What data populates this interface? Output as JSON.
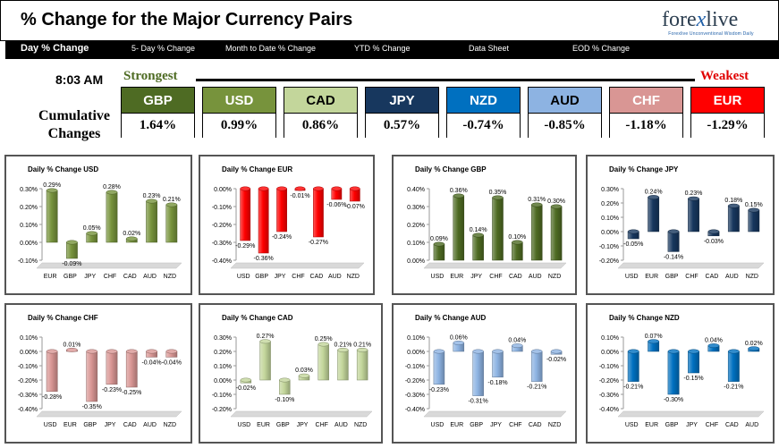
{
  "header": {
    "title": "% Change for the Major Currency Pairs",
    "logo": {
      "text_main": "fore",
      "text_x": "x",
      "text_end": "live",
      "tagline": "Forexlive Unconventional Wisdom Daily"
    }
  },
  "nav": {
    "items": [
      "Day % Change",
      "5- Day % Change",
      "Month to Date % Change",
      "YTD % Change",
      "Data Sheet",
      "EOD % Change"
    ]
  },
  "summary": {
    "time": "8:03 AM",
    "strongest": "Strongest",
    "weakest": "Weakest",
    "cumulative_label_1": "Cumulative",
    "cumulative_label_2": "Changes",
    "currencies": [
      {
        "name": "GBP",
        "value": "1.64%",
        "color": "#4e6b23",
        "text_color": "#ffffff"
      },
      {
        "name": "USD",
        "value": "0.99%",
        "color": "#77933c",
        "text_color": "#ffffff"
      },
      {
        "name": "CAD",
        "value": "0.86%",
        "color": "#c3d69b",
        "text_color": "#000000"
      },
      {
        "name": "JPY",
        "value": "0.57%",
        "color": "#17375e",
        "text_color": "#ffffff"
      },
      {
        "name": "NZD",
        "value": "-0.74%",
        "color": "#0070c0",
        "text_color": "#ffffff"
      },
      {
        "name": "AUD",
        "value": "-0.85%",
        "color": "#8db3e2",
        "text_color": "#000000"
      },
      {
        "name": "CHF",
        "value": "-1.18%",
        "color": "#d99694",
        "text_color": "#ffffff"
      },
      {
        "name": "EUR",
        "value": "-1.29%",
        "color": "#ff0000",
        "text_color": "#ffffff"
      }
    ]
  },
  "chart_data": [
    {
      "type": "bar",
      "title": "Daily % Change USD",
      "categories": [
        "EUR",
        "GBP",
        "JPY",
        "CHF",
        "CAD",
        "AUD",
        "NZD"
      ],
      "values": [
        0.29,
        -0.09,
        0.05,
        0.28,
        0.02,
        0.23,
        0.21
      ],
      "labels": [
        "0.29%",
        "-0.09%",
        "0.05%",
        "0.28%",
        "0.02%",
        "0.23%",
        "0.21%"
      ],
      "ylim": [
        -0.1,
        0.3
      ],
      "ticks": [
        "0.30%",
        "0.20%",
        "0.10%",
        "0.00%",
        "-0.10%"
      ],
      "color": "#77933c"
    },
    {
      "type": "bar",
      "title": "Daily % Change EUR",
      "categories": [
        "USD",
        "GBP",
        "JPY",
        "CHF",
        "CAD",
        "AUD",
        "NZD"
      ],
      "values": [
        -0.29,
        -0.36,
        -0.24,
        -0.01,
        -0.27,
        -0.06,
        -0.07
      ],
      "labels": [
        "-0.29%",
        "-0.36%",
        "-0.24%",
        "-0.01%",
        "-0.27%",
        "-0.06%",
        "-0.07%"
      ],
      "ylim": [
        -0.4,
        0.0
      ],
      "ticks": [
        "0.00%",
        "-0.10%",
        "-0.20%",
        "-0.30%",
        "-0.40%"
      ],
      "color": "#ff0000"
    },
    {
      "type": "bar",
      "title": "Daily % Change GBP",
      "categories": [
        "USD",
        "EUR",
        "JPY",
        "CHF",
        "CAD",
        "AUD",
        "NZD"
      ],
      "values": [
        0.09,
        0.36,
        0.14,
        0.35,
        0.1,
        0.31,
        0.3
      ],
      "labels": [
        "0.09%",
        "0.36%",
        "0.14%",
        "0.35%",
        "0.10%",
        "0.31%",
        "0.30%"
      ],
      "ylim": [
        0.0,
        0.4
      ],
      "ticks": [
        "0.40%",
        "0.30%",
        "0.20%",
        "0.10%",
        "0.00%"
      ],
      "color": "#4e6b23"
    },
    {
      "type": "bar",
      "title": "Daily % Change JPY",
      "categories": [
        "USD",
        "EUR",
        "GBP",
        "CHF",
        "CAD",
        "AUD",
        "NZD"
      ],
      "values": [
        -0.05,
        0.24,
        -0.14,
        0.23,
        -0.03,
        0.18,
        0.15
      ],
      "labels": [
        "-0.05%",
        "0.24%",
        "-0.14%",
        "0.23%",
        "-0.03%",
        "0.18%",
        "0.15%"
      ],
      "ylim": [
        -0.2,
        0.3
      ],
      "ticks": [
        "0.30%",
        "0.20%",
        "0.10%",
        "0.00%",
        "-0.10%",
        "-0.20%"
      ],
      "color": "#17375e"
    },
    {
      "type": "bar",
      "title": "Daily % Change CHF",
      "categories": [
        "USD",
        "EUR",
        "GBP",
        "JPY",
        "CAD",
        "AUD",
        "NZD"
      ],
      "values": [
        -0.28,
        0.01,
        -0.35,
        -0.23,
        -0.25,
        -0.04,
        -0.04
      ],
      "labels": [
        "-0.28%",
        "0.01%",
        "-0.35%",
        "-0.23%",
        "-0.25%",
        "-0.04%",
        "-0.04%"
      ],
      "ylim": [
        -0.4,
        0.1
      ],
      "ticks": [
        "0.10%",
        "0.00%",
        "-0.10%",
        "-0.20%",
        "-0.30%",
        "-0.40%"
      ],
      "color": "#d99694"
    },
    {
      "type": "bar",
      "title": "Daily % Change CAD",
      "categories": [
        "USD",
        "EUR",
        "GBP",
        "JPY",
        "CHF",
        "AUD",
        "NZD"
      ],
      "values": [
        -0.02,
        0.27,
        -0.1,
        0.03,
        0.25,
        0.21,
        0.21
      ],
      "labels": [
        "-0.02%",
        "0.27%",
        "-0.10%",
        "0.03%",
        "0.25%",
        "0.21%",
        "0.21%"
      ],
      "ylim": [
        -0.2,
        0.3
      ],
      "ticks": [
        "0.30%",
        "0.20%",
        "0.10%",
        "0.00%",
        "-0.10%",
        "-0.20%"
      ],
      "color": "#c3d69b"
    },
    {
      "type": "bar",
      "title": "Daily % Change AUD",
      "categories": [
        "USD",
        "EUR",
        "GBP",
        "JPY",
        "CHF",
        "CAD",
        "NZD"
      ],
      "values": [
        -0.23,
        0.06,
        -0.31,
        -0.18,
        0.04,
        -0.21,
        -0.02
      ],
      "labels": [
        "-0.23%",
        "0.06%",
        "-0.31%",
        "-0.18%",
        "0.04%",
        "-0.21%",
        "-0.02%"
      ],
      "ylim": [
        -0.4,
        0.1
      ],
      "ticks": [
        "0.10%",
        "0.00%",
        "-0.10%",
        "-0.20%",
        "-0.30%",
        "-0.40%"
      ],
      "color": "#8db3e2"
    },
    {
      "type": "bar",
      "title": "Daily % Change NZD",
      "categories": [
        "USD",
        "EUR",
        "GBP",
        "JPY",
        "CHF",
        "CAD",
        "AUD"
      ],
      "values": [
        -0.21,
        0.07,
        -0.3,
        -0.15,
        0.04,
        -0.21,
        0.02
      ],
      "labels": [
        "-0.21%",
        "0.07%",
        "-0.30%",
        "-0.15%",
        "0.04%",
        "-0.21%",
        "0.02%"
      ],
      "ylim": [
        -0.4,
        0.1
      ],
      "ticks": [
        "0.10%",
        "0.00%",
        "-0.10%",
        "-0.20%",
        "-0.30%",
        "-0.40%"
      ],
      "color": "#0070c0"
    }
  ]
}
